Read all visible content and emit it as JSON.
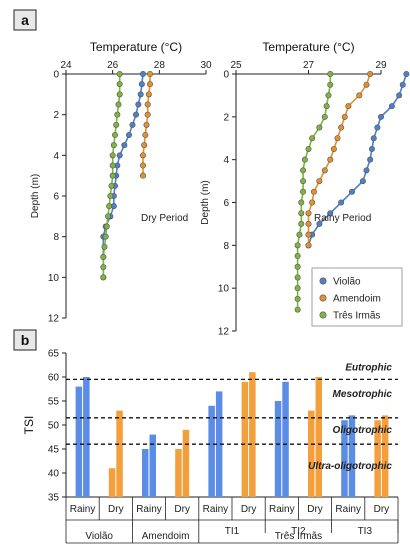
{
  "panels": {
    "a": "a",
    "b": "b"
  },
  "chart_data": [
    {
      "type": "line",
      "panel": "a",
      "xlabel": "Temperature (°C)",
      "ylabel": "Depth (m)",
      "xlim": [
        24,
        30
      ],
      "xticks": [
        24,
        26,
        28,
        30
      ],
      "ylim": [
        0,
        12
      ],
      "yticks": [
        0,
        2,
        4,
        6,
        8,
        10,
        12
      ],
      "y_reversed": true,
      "annotation": "Dry Period",
      "series": [
        {
          "name": "Violão",
          "color": "#4f7fc4",
          "points": [
            [
              27.3,
              0
            ],
            [
              27.25,
              0.5
            ],
            [
              27.2,
              1
            ],
            [
              27.1,
              1.5
            ],
            [
              27.0,
              2
            ],
            [
              26.85,
              2.5
            ],
            [
              26.7,
              3
            ],
            [
              26.5,
              3.5
            ],
            [
              26.3,
              4
            ],
            [
              26.2,
              4.5
            ],
            [
              26.15,
              5
            ],
            [
              26.1,
              5.5
            ],
            [
              26.05,
              6
            ],
            [
              26.05,
              6.5
            ],
            [
              25.9,
              7
            ],
            [
              25.7,
              7.5
            ],
            [
              25.6,
              8
            ],
            [
              25.6,
              9
            ],
            [
              25.6,
              10
            ]
          ]
        },
        {
          "name": "Amendoim",
          "color": "#e0922f",
          "points": [
            [
              27.6,
              0
            ],
            [
              27.6,
              0.5
            ],
            [
              27.55,
              1
            ],
            [
              27.5,
              1.5
            ],
            [
              27.5,
              2
            ],
            [
              27.45,
              2.5
            ],
            [
              27.4,
              3
            ],
            [
              27.35,
              3.5
            ],
            [
              27.3,
              4
            ],
            [
              27.3,
              4.5
            ],
            [
              27.3,
              5
            ]
          ]
        },
        {
          "name": "Três Irmãs",
          "color": "#7fb342",
          "points": [
            [
              26.3,
              0
            ],
            [
              26.3,
              0.5
            ],
            [
              26.3,
              1
            ],
            [
              26.25,
              1.5
            ],
            [
              26.2,
              2
            ],
            [
              26.15,
              2.5
            ],
            [
              26.1,
              3
            ],
            [
              26.05,
              3.5
            ],
            [
              26.0,
              4
            ],
            [
              26.0,
              4.5
            ],
            [
              26.0,
              5
            ],
            [
              25.95,
              5.5
            ],
            [
              25.9,
              6
            ],
            [
              25.85,
              6.5
            ],
            [
              25.8,
              7
            ],
            [
              25.75,
              7.5
            ],
            [
              25.7,
              8
            ],
            [
              25.65,
              8.5
            ],
            [
              25.6,
              9
            ],
            [
              25.6,
              9.5
            ],
            [
              25.6,
              10
            ]
          ]
        }
      ]
    },
    {
      "type": "line",
      "panel": "a",
      "xlabel": "Temperature (°C)",
      "ylabel": "Depth (m)",
      "xlim": [
        25,
        29
      ],
      "xticks": [
        25,
        27,
        29
      ],
      "ylim": [
        0,
        12
      ],
      "yticks": [
        0,
        2,
        4,
        6,
        8,
        10,
        12
      ],
      "y_reversed": true,
      "annotation": "Rainy Period",
      "legend": "bottom-right",
      "series": [
        {
          "name": "Violão",
          "color": "#4f7fc4",
          "points": [
            [
              29.7,
              0
            ],
            [
              29.6,
              0.5
            ],
            [
              29.5,
              1
            ],
            [
              29.3,
              1.5
            ],
            [
              29.0,
              2
            ],
            [
              28.9,
              2.5
            ],
            [
              28.8,
              3
            ],
            [
              28.75,
              3.5
            ],
            [
              28.7,
              4
            ],
            [
              28.6,
              4.5
            ],
            [
              28.5,
              5
            ],
            [
              28.2,
              5.5
            ],
            [
              27.9,
              6
            ],
            [
              27.6,
              6.5
            ],
            [
              27.3,
              7
            ],
            [
              27.1,
              7.5
            ],
            [
              27.0,
              8
            ]
          ]
        },
        {
          "name": "Amendoim",
          "color": "#e0922f",
          "points": [
            [
              28.7,
              0
            ],
            [
              28.6,
              0.5
            ],
            [
              28.4,
              1
            ],
            [
              28.1,
              1.5
            ],
            [
              28.0,
              2
            ],
            [
              27.9,
              2.5
            ],
            [
              27.8,
              3
            ],
            [
              27.7,
              3.5
            ],
            [
              27.6,
              4
            ],
            [
              27.45,
              4.5
            ],
            [
              27.3,
              5
            ],
            [
              27.15,
              5.5
            ],
            [
              27.1,
              6
            ],
            [
              27.0,
              6.5
            ],
            [
              27.0,
              7
            ],
            [
              27.0,
              7.5
            ],
            [
              27.0,
              8
            ]
          ]
        },
        {
          "name": "Três Irmãs",
          "color": "#7fb342",
          "points": [
            [
              27.6,
              0
            ],
            [
              27.6,
              0.5
            ],
            [
              27.55,
              1
            ],
            [
              27.5,
              1.5
            ],
            [
              27.45,
              2
            ],
            [
              27.3,
              2.5
            ],
            [
              27.1,
              3
            ],
            [
              27.0,
              3.5
            ],
            [
              26.9,
              4
            ],
            [
              26.85,
              4.5
            ],
            [
              26.85,
              5
            ],
            [
              26.85,
              5.5
            ],
            [
              26.8,
              6
            ],
            [
              26.8,
              6.5
            ],
            [
              26.8,
              7
            ],
            [
              26.75,
              7.5
            ],
            [
              26.7,
              8
            ],
            [
              26.7,
              8.5
            ],
            [
              26.7,
              9
            ],
            [
              26.7,
              9.5
            ],
            [
              26.7,
              10
            ],
            [
              26.7,
              10.5
            ],
            [
              26.7,
              11
            ]
          ]
        }
      ]
    },
    {
      "type": "bar",
      "panel": "b",
      "ylabel": "TSI",
      "ylim": [
        35,
        65
      ],
      "yticks": [
        35,
        40,
        45,
        50,
        55,
        60,
        65
      ],
      "colors": {
        "Rainy": "#5b8de6",
        "Dry": "#f3a03c"
      },
      "categories": [
        "Violão Rainy",
        "Violão Dry",
        "Amendoim Rainy",
        "Amendoim Dry",
        "TI1 Rainy",
        "TI1 Dry",
        "TI2 Rainy",
        "TI2 Dry",
        "TI3 Rainy",
        "TI3 Dry"
      ],
      "bar_pairs": [
        [
          58,
          60
        ],
        [
          41,
          53
        ],
        [
          45,
          48
        ],
        [
          45,
          49
        ],
        [
          54,
          57
        ],
        [
          59,
          61
        ],
        [
          55,
          59
        ],
        [
          53,
          60
        ],
        [
          51,
          52
        ],
        [
          51,
          52
        ]
      ],
      "bar_seasons": [
        "Rainy",
        "Dry",
        "Rainy",
        "Dry",
        "Rainy",
        "Dry",
        "Rainy",
        "Dry",
        "Rainy",
        "Dry"
      ],
      "thresholds": [
        59.5,
        51.5,
        46
      ],
      "zones": [
        {
          "label": "Eutrophic",
          "y": 62
        },
        {
          "label": "Mesotrophic",
          "y": 56.5
        },
        {
          "label": "Oligotrophic",
          "y": 49
        },
        {
          "label": "Ultra-oligotrophic",
          "y": 41.5
        }
      ],
      "x_labels": [
        "Rainy",
        "Dry",
        "Rainy",
        "Dry",
        "Rainy",
        "Dry",
        "Rainy",
        "Dry",
        "Rainy",
        "Dry"
      ],
      "subgroups": [
        "TI1",
        "TI2",
        "TI3"
      ],
      "groups": [
        "Violão",
        "Amendoim",
        "Três Irmãs"
      ]
    }
  ]
}
